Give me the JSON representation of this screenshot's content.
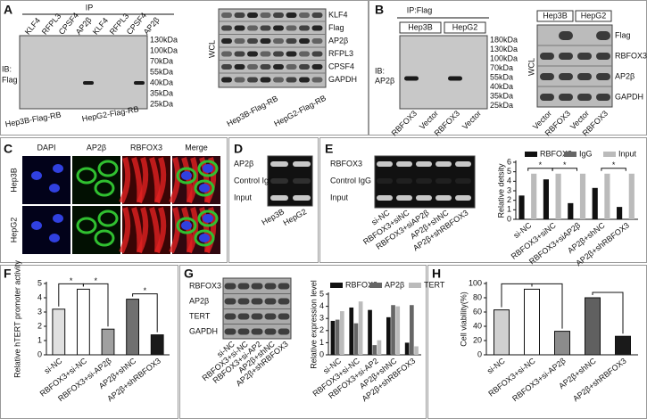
{
  "panels": {
    "a": {
      "label": "A",
      "ip_header": "IP",
      "lanes": [
        "KLF4",
        "RFPL3",
        "CPSF4",
        "AP2β",
        "KLF4",
        "RFPL3",
        "CPSF4",
        "AP2β"
      ],
      "ib_label": [
        "IB:",
        "Flag"
      ],
      "markers": [
        "130kDa",
        "100kDa",
        "70kDa",
        "55kDa",
        "40kDa",
        "35kDa",
        "25kDa"
      ],
      "groups": [
        "Hep3B-Flag-RB",
        "HepG2-Flag-RB"
      ],
      "wcl": "WCL",
      "wcl_rows": [
        "KLF4",
        "Flag",
        "AP2β",
        "RFPL3",
        "CPSF4",
        "GAPDH"
      ],
      "wcl_groups": [
        "Hep3B-Flag-RB",
        "HepG2-Flag-RB"
      ]
    },
    "b": {
      "label": "B",
      "ip_header": "IP:Flag",
      "cells": [
        "Hep3B",
        "HepG2"
      ],
      "ib_label": [
        "IB:",
        "AP2β"
      ],
      "markers": [
        "180kDa",
        "130kDa",
        "100kDa",
        "70kDa",
        "55kDa",
        "40kDa",
        "35kDa",
        "25kDa"
      ],
      "lanes": [
        "RBFOX3",
        "Vector",
        "RBFOX3",
        "Vector"
      ],
      "wcl_cells": [
        "Hep3B",
        "HepG2"
      ],
      "wcl": "WCL",
      "wcl_rows": [
        "Flag",
        "RBFOX3",
        "AP2β",
        "GAPDH"
      ],
      "wcl_lanes": [
        "Vector",
        "RBFOX3",
        "Vector",
        "RBFOX3"
      ]
    },
    "c": {
      "label": "C",
      "columns": [
        "DAPI",
        "AP2β",
        "RBFOX3",
        "Merge"
      ],
      "rows": [
        "Hep3B",
        "HepG2"
      ]
    },
    "d": {
      "label": "D",
      "rows": [
        "AP2β",
        "Control IgG",
        "Input"
      ],
      "lanes": [
        "Hep3B",
        "HepG2"
      ]
    },
    "e": {
      "label": "E",
      "rows": [
        "RBFOX3",
        "Control IgG",
        "Input"
      ],
      "lanes": [
        "si-NC",
        "RBFOX3+siNC",
        "RBFOX3+siAP2β",
        "AP2β+shNC",
        "AP2β+shRBFOX3"
      ]
    },
    "f": {
      "label": "F"
    },
    "g": {
      "label": "G",
      "rows": [
        "RBFOX3",
        "AP2β",
        "TERT",
        "GAPDH"
      ],
      "lanes": [
        "si-NC",
        "RBFOX3+si-NC",
        "RBFOX3+si-AP2",
        "AP2β+shNC",
        "AP2β+shRBFOX3"
      ]
    },
    "h": {
      "label": "H"
    }
  },
  "chart_data": [
    {
      "type": "bar",
      "y_label": "Relative detsity",
      "categories": [
        "si-NC",
        "RBFOX3+siNC",
        "RBFOX3+siAP2β",
        "AP2β+shNC",
        "AP2β+shRBFOX3"
      ],
      "series": [
        {
          "name": "RBFOX3",
          "color": "#111111",
          "values": [
            2.5,
            4.2,
            1.7,
            3.3,
            1.3
          ]
        },
        {
          "name": "IgG",
          "color": "#666666",
          "values": [
            0,
            0,
            0,
            0,
            0
          ]
        },
        {
          "name": "Input",
          "color": "#bbbbbb",
          "values": [
            4.8,
            4.8,
            4.8,
            4.8,
            4.8
          ]
        }
      ],
      "ylim": [
        0,
        6
      ],
      "yticks": [
        0,
        1,
        2,
        3,
        4,
        5,
        6
      ],
      "annotations": [
        "*",
        "*",
        "*"
      ]
    },
    {
      "type": "bar",
      "y_label": "Relative hTERT promoter activity",
      "categories": [
        "si-NC",
        "RBFOX3+si-NC",
        "RBFOX3+si-AP2β",
        "AP2β+shNC",
        "AP2β+shRBFOX3"
      ],
      "values": [
        3.2,
        4.6,
        1.8,
        3.9,
        1.4
      ],
      "colors": [
        "#e0e0e0",
        "#ffffff",
        "#a0a0a0",
        "#707070",
        "#1a1a1a"
      ],
      "ylim": [
        0,
        5
      ],
      "yticks": [
        0,
        1,
        2,
        3,
        4,
        5
      ],
      "annotations": [
        "*",
        "*",
        "*"
      ]
    },
    {
      "type": "bar",
      "y_label": "Relative expression level",
      "categories": [
        "si-NC",
        "RBFOX3+si-NC",
        "RBFOX3+si-AP2",
        "AP2β+shNC",
        "AP2β+shRBFOX3"
      ],
      "series": [
        {
          "name": "RBFOX3",
          "color": "#111111",
          "values": [
            2.8,
            3.9,
            3.7,
            3.1,
            1.0
          ]
        },
        {
          "name": "AP2β",
          "color": "#666666",
          "values": [
            2.9,
            2.6,
            0.8,
            4.1,
            4.1
          ]
        },
        {
          "name": "TERT",
          "color": "#bbbbbb",
          "values": [
            3.6,
            4.4,
            1.2,
            4.0,
            0.7
          ]
        }
      ],
      "ylim": [
        0,
        5
      ],
      "yticks": [
        0,
        1,
        2,
        3,
        4,
        5
      ]
    },
    {
      "type": "bar",
      "y_label": "Cell viability(%)",
      "categories": [
        "si-NC",
        "RBFOX3+si-NC",
        "RBFOX3+si-AP2β",
        "AP2β+shNC",
        "AP2β+shRBFOX3"
      ],
      "values": [
        63,
        92,
        33,
        80,
        26
      ],
      "colors": [
        "#d0d0d0",
        "#ffffff",
        "#8c8c8c",
        "#606060",
        "#1a1a1a"
      ],
      "ylim": [
        0,
        100
      ],
      "yticks": [
        0,
        20,
        40,
        60,
        80,
        100
      ]
    }
  ]
}
